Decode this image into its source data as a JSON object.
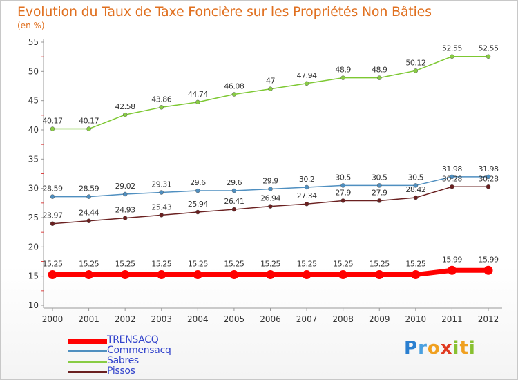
{
  "chart_data": {
    "type": "line",
    "title": "Evolution du Taux de Taxe Foncière sur les Propriétés Non Bâties",
    "unit_label": "(en %)",
    "x": [
      "2000",
      "2001",
      "2002",
      "2003",
      "2004",
      "2005",
      "2006",
      "2007",
      "2008",
      "2009",
      "2010",
      "2011",
      "2012"
    ],
    "ylim": [
      10,
      55
    ],
    "yticks": [
      10,
      15,
      20,
      25,
      30,
      35,
      40,
      45,
      50,
      55
    ],
    "grid": false,
    "legend_position": "bottom-left",
    "series": [
      {
        "name": "Sabres",
        "color": "#7dc832",
        "point_color": "#88cc44",
        "values": [
          40.17,
          40.17,
          42.58,
          43.86,
          44.74,
          46.08,
          47,
          47.94,
          48.9,
          48.9,
          50.12,
          52.55,
          52.55
        ],
        "labels": [
          "40.17",
          "40.17",
          "42.58",
          "43.86",
          "44.74",
          "46.08",
          "47",
          "47.94",
          "48.9",
          "48.9",
          "50.12",
          "52.55",
          "52.55"
        ]
      },
      {
        "name": "Commensacq",
        "color": "#4f8fc0",
        "point_color": "#4f8fc0",
        "values": [
          28.59,
          28.59,
          29.02,
          29.31,
          29.6,
          29.6,
          29.9,
          30.2,
          30.5,
          30.5,
          30.5,
          31.98,
          31.98
        ],
        "labels": [
          "28.59",
          "28.59",
          "29.02",
          "29.31",
          "29.6",
          "29.6",
          "29.9",
          "30.2",
          "30.5",
          "30.5",
          "30.5",
          "31.98",
          "31.98"
        ]
      },
      {
        "name": "Pissos",
        "color": "#6a2020",
        "point_color": "#6a2020",
        "values": [
          23.97,
          24.44,
          24.93,
          25.43,
          25.94,
          26.41,
          26.94,
          27.34,
          27.9,
          27.9,
          28.42,
          30.28,
          30.28
        ],
        "labels": [
          "23.97",
          "24.44",
          "24.93",
          "25.43",
          "25.94",
          "26.41",
          "26.94",
          "27.34",
          "27.9",
          "27.9",
          "28.42",
          "30.28",
          "30.28"
        ]
      },
      {
        "name": "TRENSACQ",
        "color": "#ff0000",
        "point_color": "#ff0000",
        "values": [
          15.25,
          15.25,
          15.25,
          15.25,
          15.25,
          15.25,
          15.25,
          15.25,
          15.25,
          15.25,
          15.25,
          15.99,
          15.99
        ],
        "labels": [
          "15.25",
          "15.25",
          "15.25",
          "15.25",
          "15.25",
          "15.25",
          "15.25",
          "15.25",
          "15.25",
          "15.25",
          "15.25",
          "15.99",
          "15.99"
        ]
      }
    ],
    "legend": [
      {
        "name": "TRENSACQ",
        "color": "#ff0000"
      },
      {
        "name": "Commensacq",
        "color": "#4f8fc0"
      },
      {
        "name": "Sabres",
        "color": "#88cc44"
      },
      {
        "name": "Pissos",
        "color": "#6a2020"
      }
    ]
  },
  "logo": {
    "letters": [
      "P",
      "r",
      "o",
      "x",
      "i",
      "t",
      "i"
    ],
    "colors": [
      "#2a7fd0",
      "#4aa0e0",
      "#f0a020",
      "#e03a20",
      "#88c030",
      "#f0a020",
      "#88c030"
    ]
  }
}
